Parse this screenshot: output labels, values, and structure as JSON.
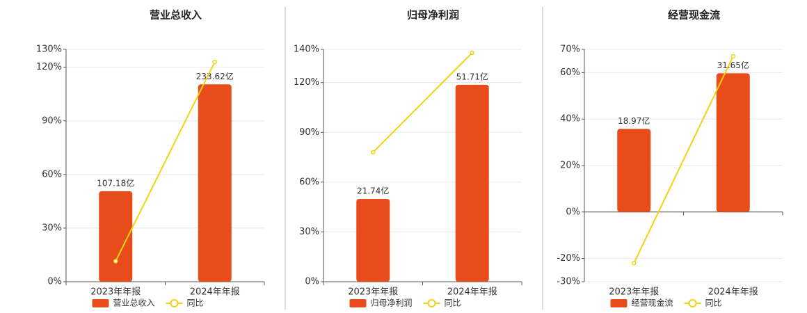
{
  "chart_data": [
    {
      "type": "bar",
      "title": "营业总收入",
      "categories": [
        "2023年年报",
        "2024年年报"
      ],
      "series": [
        {
          "name": "营业总收入",
          "type": "bar",
          "axis": "y2",
          "color": "#e84c1a",
          "values": [
            107.18,
            233.62
          ],
          "value_labels": [
            "107.18亿",
            "233.62亿"
          ]
        },
        {
          "name": "同比",
          "type": "line",
          "color": "#f2d311",
          "values": [
            11.5,
            123
          ]
        }
      ],
      "ylim": [
        0,
        130
      ],
      "yticks": [
        {
          "value": 0,
          "label": "0%"
        },
        {
          "value": 30,
          "label": "30%"
        },
        {
          "value": 60,
          "label": "60%"
        },
        {
          "value": 90,
          "label": "90%"
        },
        {
          "value": 120,
          "label": "120%"
        },
        {
          "value": 130,
          "label": "130%"
        }
      ],
      "y2lim": [
        0,
        275
      ],
      "grid": true
    },
    {
      "type": "bar",
      "title": "归母净利润",
      "categories": [
        "2023年年报",
        "2024年年报"
      ],
      "series": [
        {
          "name": "归母净利润",
          "type": "bar",
          "axis": "y2",
          "color": "#e84c1a",
          "values": [
            21.74,
            51.71
          ],
          "value_labels": [
            "21.74亿",
            "51.71亿"
          ]
        },
        {
          "name": "同比",
          "type": "line",
          "color": "#f2d311",
          "values": [
            78,
            138
          ]
        }
      ],
      "ylim": [
        0,
        140
      ],
      "yticks": [
        {
          "value": 0,
          "label": "0%"
        },
        {
          "value": 30,
          "label": "30%"
        },
        {
          "value": 60,
          "label": "60%"
        },
        {
          "value": 90,
          "label": "90%"
        },
        {
          "value": 120,
          "label": "120%"
        },
        {
          "value": 140,
          "label": "140%"
        }
      ],
      "y2lim": [
        0,
        61
      ],
      "grid": true
    },
    {
      "type": "bar",
      "title": "经营现金流",
      "categories": [
        "2023年年报",
        "2024年年报"
      ],
      "series": [
        {
          "name": "经营现金流",
          "type": "bar",
          "axis": "y2",
          "color": "#e84c1a",
          "values": [
            18.97,
            31.65
          ],
          "value_labels": [
            "18.97亿",
            "31.65亿"
          ]
        },
        {
          "name": "同比",
          "type": "line",
          "color": "#f2d311",
          "values": [
            -22,
            67
          ]
        }
      ],
      "ylim": [
        -30,
        70
      ],
      "yticks": [
        {
          "value": -30,
          "label": "-30%"
        },
        {
          "value": -20,
          "label": "-20%"
        },
        {
          "value": 0,
          "label": "0%"
        },
        {
          "value": 20,
          "label": "20%"
        },
        {
          "value": 40,
          "label": "40%"
        },
        {
          "value": 60,
          "label": "60%"
        },
        {
          "value": 70,
          "label": "70%"
        }
      ],
      "y2lim": [
        -15.9,
        37.1
      ],
      "grid": true
    }
  ]
}
